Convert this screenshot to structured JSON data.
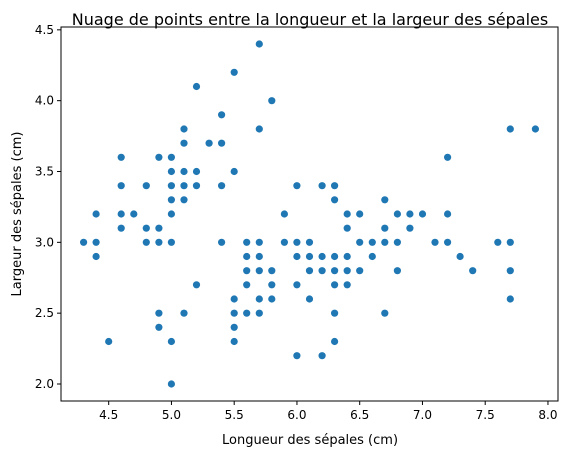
{
  "chart_data": {
    "type": "scatter",
    "title": "Nuage de points entre la longueur et la largeur des sépales",
    "xlabel": "Longueur des sépales (cm)",
    "ylabel": "Largeur des sépales (cm)",
    "xlim": [
      4.12,
      8.08
    ],
    "ylim": [
      1.88,
      4.52
    ],
    "xticks": [
      "4.5",
      "5.0",
      "5.5",
      "6.0",
      "6.5",
      "7.0",
      "7.5",
      "8.0"
    ],
    "yticks": [
      "2.0",
      "2.5",
      "3.0",
      "3.5",
      "4.0",
      "4.5"
    ],
    "grid": false,
    "marker_color": "#1f77b4",
    "points": [
      [
        4.3,
        3.0
      ],
      [
        4.4,
        2.9
      ],
      [
        4.4,
        3.0
      ],
      [
        4.4,
        3.2
      ],
      [
        4.5,
        2.3
      ],
      [
        4.6,
        3.1
      ],
      [
        4.6,
        3.2
      ],
      [
        4.6,
        3.4
      ],
      [
        4.6,
        3.6
      ],
      [
        4.7,
        3.2
      ],
      [
        4.8,
        3.0
      ],
      [
        4.8,
        3.1
      ],
      [
        4.8,
        3.4
      ],
      [
        4.9,
        2.4
      ],
      [
        4.9,
        2.5
      ],
      [
        4.9,
        3.0
      ],
      [
        4.9,
        3.1
      ],
      [
        4.9,
        3.6
      ],
      [
        5.0,
        2.0
      ],
      [
        5.0,
        2.3
      ],
      [
        5.0,
        3.0
      ],
      [
        5.0,
        3.2
      ],
      [
        5.0,
        3.3
      ],
      [
        5.0,
        3.4
      ],
      [
        5.0,
        3.5
      ],
      [
        5.0,
        3.6
      ],
      [
        5.1,
        2.5
      ],
      [
        5.1,
        3.3
      ],
      [
        5.1,
        3.4
      ],
      [
        5.1,
        3.5
      ],
      [
        5.1,
        3.7
      ],
      [
        5.1,
        3.8
      ],
      [
        5.2,
        2.7
      ],
      [
        5.2,
        3.4
      ],
      [
        5.2,
        3.5
      ],
      [
        5.2,
        4.1
      ],
      [
        5.3,
        3.7
      ],
      [
        5.4,
        3.0
      ],
      [
        5.4,
        3.4
      ],
      [
        5.4,
        3.7
      ],
      [
        5.4,
        3.9
      ],
      [
        5.5,
        2.3
      ],
      [
        5.5,
        2.4
      ],
      [
        5.5,
        2.5
      ],
      [
        5.5,
        2.6
      ],
      [
        5.5,
        3.5
      ],
      [
        5.5,
        4.2
      ],
      [
        5.6,
        2.5
      ],
      [
        5.6,
        2.7
      ],
      [
        5.6,
        2.8
      ],
      [
        5.6,
        2.9
      ],
      [
        5.6,
        3.0
      ],
      [
        5.7,
        2.5
      ],
      [
        5.7,
        2.6
      ],
      [
        5.7,
        2.8
      ],
      [
        5.7,
        2.9
      ],
      [
        5.7,
        3.0
      ],
      [
        5.7,
        3.8
      ],
      [
        5.7,
        4.4
      ],
      [
        5.8,
        2.6
      ],
      [
        5.8,
        2.7
      ],
      [
        5.8,
        2.8
      ],
      [
        5.8,
        4.0
      ],
      [
        5.9,
        3.0
      ],
      [
        5.9,
        3.2
      ],
      [
        6.0,
        2.2
      ],
      [
        6.0,
        2.7
      ],
      [
        6.0,
        2.9
      ],
      [
        6.0,
        3.0
      ],
      [
        6.0,
        3.4
      ],
      [
        6.1,
        2.6
      ],
      [
        6.1,
        2.8
      ],
      [
        6.1,
        2.9
      ],
      [
        6.1,
        3.0
      ],
      [
        6.2,
        2.2
      ],
      [
        6.2,
        2.8
      ],
      [
        6.2,
        2.9
      ],
      [
        6.2,
        3.4
      ],
      [
        6.3,
        2.3
      ],
      [
        6.3,
        2.5
      ],
      [
        6.3,
        2.7
      ],
      [
        6.3,
        2.8
      ],
      [
        6.3,
        2.9
      ],
      [
        6.3,
        3.3
      ],
      [
        6.3,
        3.4
      ],
      [
        6.4,
        2.7
      ],
      [
        6.4,
        2.8
      ],
      [
        6.4,
        2.9
      ],
      [
        6.4,
        3.1
      ],
      [
        6.4,
        3.2
      ],
      [
        6.5,
        2.8
      ],
      [
        6.5,
        3.0
      ],
      [
        6.5,
        3.2
      ],
      [
        6.6,
        2.9
      ],
      [
        6.6,
        3.0
      ],
      [
        6.7,
        2.5
      ],
      [
        6.7,
        3.0
      ],
      [
        6.7,
        3.1
      ],
      [
        6.7,
        3.3
      ],
      [
        6.8,
        2.8
      ],
      [
        6.8,
        3.0
      ],
      [
        6.8,
        3.2
      ],
      [
        6.9,
        3.1
      ],
      [
        6.9,
        3.2
      ],
      [
        7.0,
        3.2
      ],
      [
        7.1,
        3.0
      ],
      [
        7.2,
        3.0
      ],
      [
        7.2,
        3.2
      ],
      [
        7.2,
        3.6
      ],
      [
        7.3,
        2.9
      ],
      [
        7.4,
        2.8
      ],
      [
        7.6,
        3.0
      ],
      [
        7.7,
        2.6
      ],
      [
        7.7,
        2.8
      ],
      [
        7.7,
        3.0
      ],
      [
        7.7,
        3.8
      ],
      [
        7.9,
        3.8
      ]
    ]
  }
}
